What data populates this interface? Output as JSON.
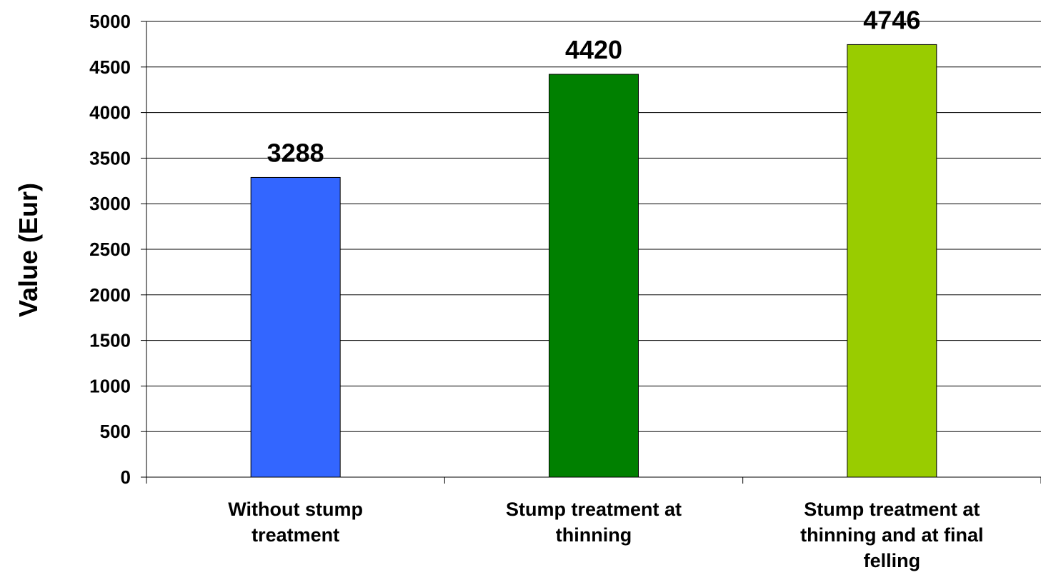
{
  "chart_data": {
    "type": "bar",
    "categories": [
      [
        "Without stump",
        "treatment"
      ],
      [
        "Stump treatment at",
        "thinning"
      ],
      [
        "Stump treatment at",
        "thinning and at final",
        "felling"
      ]
    ],
    "values": [
      3288,
      4420,
      4746
    ],
    "data_labels": [
      "3288",
      "4420",
      "4746"
    ],
    "colors": [
      "#3366ff",
      "#008000",
      "#99cc00"
    ],
    "ylabel": "Value (Eur)",
    "ylim": [
      0,
      5000
    ],
    "yticks": [
      0,
      500,
      1000,
      1500,
      2000,
      2500,
      3000,
      3500,
      4000,
      4500,
      5000
    ],
    "grid": true,
    "legend": "none"
  }
}
